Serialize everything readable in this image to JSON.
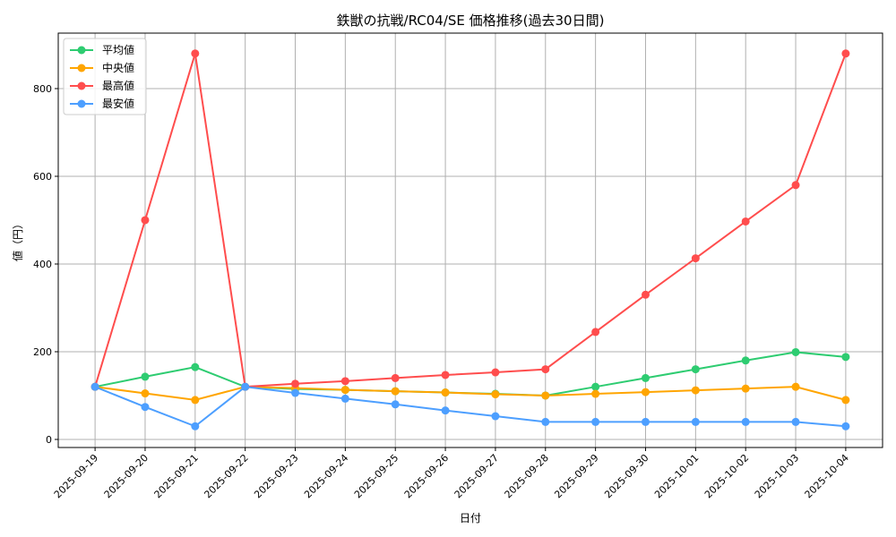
{
  "chart_data": {
    "type": "line",
    "title": "鉄獣の抗戦/RC04/SE 価格推移(過去30日間)",
    "xlabel": "日付",
    "ylabel": "値（円）",
    "categories": [
      "2025-09-19",
      "2025-09-20",
      "2025-09-21",
      "2025-09-22",
      "2025-09-23",
      "2025-09-24",
      "2025-09-25",
      "2025-09-26",
      "2025-09-27",
      "2025-09-28",
      "2025-09-29",
      "2025-09-30",
      "2025-10-01",
      "2025-10-02",
      "2025-10-03",
      "2025-10-04"
    ],
    "ylim": [
      -18.4,
      926.5
    ],
    "yticks": [
      0,
      200,
      400,
      600,
      800
    ],
    "grid": true,
    "legend_position": "top-left",
    "series": [
      {
        "name": "平均値",
        "color": "#2ecc71",
        "values": [
          120,
          143,
          165,
          120,
          115,
          113,
          110,
          107,
          104,
          100,
          120,
          140,
          160,
          180,
          199,
          188
        ]
      },
      {
        "name": "中央値",
        "color": "#ffa500",
        "values": [
          120,
          105,
          90,
          120,
          117,
          113,
          110,
          107,
          103,
          100,
          104,
          108,
          112,
          116,
          120,
          90
        ]
      },
      {
        "name": "最高値",
        "color": "#ff4d4d",
        "values": [
          120,
          500,
          880,
          120,
          127,
          133,
          140,
          147,
          153,
          160,
          245,
          330,
          413,
          497,
          580,
          880
        ]
      },
      {
        "name": "最安値",
        "color": "#4d9fff",
        "values": [
          120,
          74,
          30,
          120,
          106,
          93,
          80,
          66,
          53,
          40,
          40,
          40,
          40,
          40,
          40,
          30
        ]
      }
    ]
  }
}
